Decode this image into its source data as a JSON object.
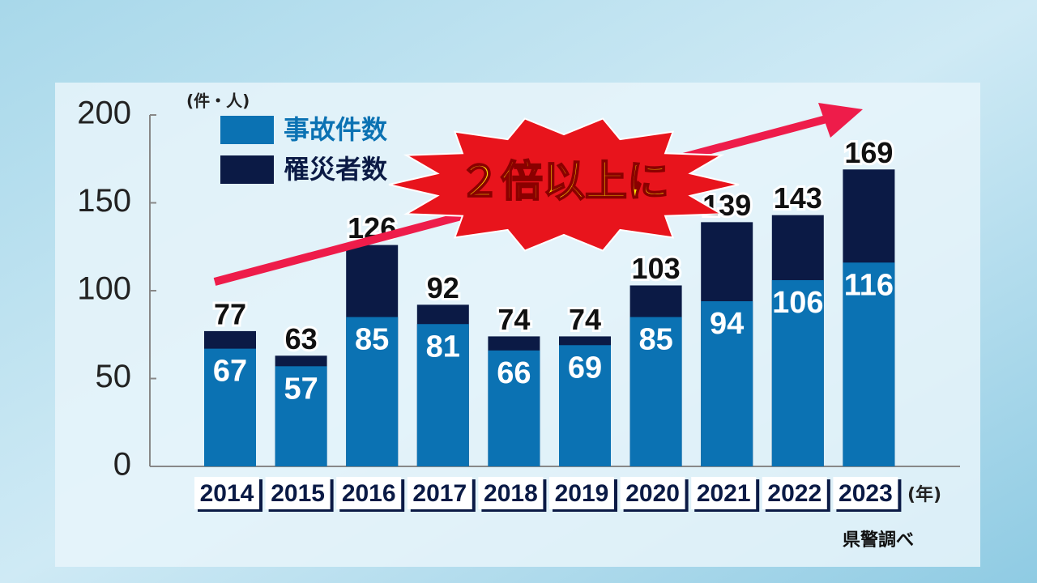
{
  "chart_data": {
    "type": "bar",
    "y_label": "(件・人)",
    "x_label": "(年)",
    "source": "県警調べ",
    "annotation": "２倍以上に",
    "categories": [
      "2014",
      "2015",
      "2016",
      "2017",
      "2018",
      "2019",
      "2020",
      "2021",
      "2022",
      "2023"
    ],
    "series": [
      {
        "name": "事故件数",
        "color": "#0b72b3",
        "values": [
          67,
          57,
          85,
          81,
          66,
          69,
          85,
          94,
          106,
          116
        ]
      },
      {
        "name": "罹災者数",
        "color": "#0b1a45",
        "values": [
          77,
          63,
          126,
          92,
          74,
          74,
          103,
          139,
          143,
          169
        ]
      }
    ],
    "ylim": [
      0,
      200
    ],
    "yticks": [
      0,
      50,
      100,
      150,
      200
    ]
  }
}
